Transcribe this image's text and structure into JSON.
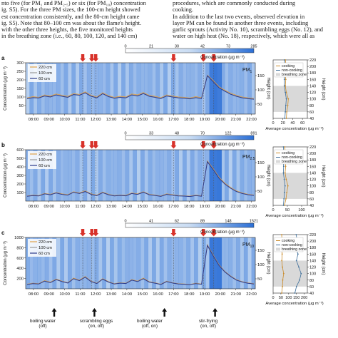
{
  "text_left": [
    "nto five (for PM₁ and PM₂.₅) or six (for PM₁₀) concentration",
    "ig. S5). For the three PM sizes, the 100-cm height showed",
    "est concentration consistently, and the 80-cm height came",
    "ig. S5). Note that 80–100 cm was about the flame's height.",
    "with the other three heights, the five monitored heights",
    "in the breathing zone (i.e., 60, 80, 100, 120, and 140 cm)"
  ],
  "text_right": [
    "procedures, which are commonly conducted during",
    "cooking.",
    "  In addition to the last two events, observed elevation in",
    "layer PM can be found in another three events, including",
    "garlic sprouts (Activity No. 10), scrambling eggs (No. 12), and",
    "water on high heat (No. 18), respectively, which were all as"
  ],
  "colors": {
    "accent_blue": "#2b6fd6",
    "line_220": "#e0a24a",
    "line_100": "#9a9a9a",
    "line_60": "#2b3a8c",
    "event_arrow": "#d8322a",
    "breathing_zone": "#d9d9d9"
  },
  "chart_data": [
    {
      "panel_letter": "a",
      "type": "line",
      "pm_label_base": "PM",
      "pm_label_sub": "1",
      "ylabel": "Concentration (μg m⁻³)",
      "y_ticks": [
        "50",
        "100",
        "150",
        "200",
        "250",
        "300"
      ],
      "ylim": [
        0,
        300
      ],
      "right_axis_label": "Height (cm)",
      "right_ticks": [
        "50",
        "100",
        "150"
      ],
      "colorbar_ticks": [
        "0",
        "21",
        "30",
        "42",
        "73",
        "285"
      ],
      "colorbar_label": "Concentration (μg m⁻³)",
      "x_ticks": [
        "08:00",
        "09:00",
        "10:00",
        "11:00",
        "12:00",
        "13:00",
        "14:00",
        "15:00",
        "16:00",
        "17:00",
        "18:00",
        "19:00",
        "20:00",
        "21:00",
        "22:00"
      ],
      "series": [
        {
          "name": "220 cm",
          "values": [
            95,
            102,
            98,
            112,
            106,
            118,
            110,
            104,
            120,
            115,
            130,
            110,
            100,
            125,
            108,
            98,
            104,
            100,
            118,
            112,
            126,
            110,
            104,
            96,
            112,
            106,
            100,
            98,
            94,
            102,
            96,
            228,
            196,
            160,
            140,
            122,
            110,
            100,
            95,
            92
          ]
        },
        {
          "name": "100 cm",
          "values": [
            92,
            98,
            96,
            108,
            102,
            114,
            106,
            100,
            116,
            112,
            126,
            106,
            97,
            121,
            104,
            95,
            100,
            97,
            114,
            108,
            122,
            106,
            100,
            93,
            108,
            102,
            97,
            95,
            91,
            98,
            93,
            226,
            192,
            156,
            136,
            118,
            106,
            97,
            92,
            89
          ]
        },
        {
          "name": "60 cm",
          "values": [
            90,
            96,
            94,
            106,
            100,
            112,
            104,
            98,
            114,
            110,
            124,
            104,
            95,
            119,
            102,
            93,
            98,
            95,
            112,
            106,
            120,
            104,
            98,
            91,
            106,
            100,
            95,
            93,
            89,
            96,
            91,
            224,
            190,
            154,
            134,
            116,
            104,
            95,
            90,
            87
          ]
        }
      ],
      "side_profile": {
        "xlabel": "Average concentration (μg m⁻³)",
        "ylabel": "Height (cm)",
        "y_ticks": [
          "40",
          "60",
          "80",
          "100",
          "120",
          "140",
          "160",
          "180",
          "200",
          "220"
        ],
        "ylim": [
          40,
          220
        ],
        "x_ticks": [
          "0",
          "20",
          "40",
          "60"
        ],
        "xlim": [
          0,
          70
        ],
        "legend": [
          "cooking",
          "non-cooking",
          "breathing zone"
        ],
        "breathing_zone": [
          60,
          140
        ],
        "heights": [
          40,
          60,
          80,
          100,
          120,
          140,
          160,
          180,
          200,
          220
        ],
        "cooking": [
          27,
          28,
          30,
          31,
          27,
          25,
          26,
          24,
          27,
          25
        ],
        "non_cooking": [
          24,
          25,
          26,
          27,
          25,
          23,
          23,
          22,
          24,
          23
        ]
      }
    },
    {
      "panel_letter": "b",
      "type": "line",
      "pm_label_base": "PM",
      "pm_label_sub": "2.5",
      "ylabel": "Concentration (μg m⁻³)",
      "y_ticks": [
        "100",
        "200",
        "300",
        "400",
        "500",
        "600"
      ],
      "ylim": [
        0,
        600
      ],
      "right_axis_label": "Height (cm)",
      "right_ticks": [
        "50",
        "100",
        "150"
      ],
      "colorbar_ticks": [
        "0",
        "33",
        "48",
        "70",
        "122",
        "891"
      ],
      "colorbar_label": "Concentration (μg m⁻³)",
      "x_ticks": [
        "08:00",
        "09:00",
        "10:00",
        "11:00",
        "12:00",
        "13:00",
        "14:00",
        "15:00",
        "16:00",
        "17:00",
        "18:00",
        "19:00",
        "20:00",
        "21:00",
        "22:00"
      ],
      "series": [
        {
          "name": "220 cm",
          "values": [
            60,
            70,
            65,
            90,
            80,
            100,
            85,
            75,
            110,
            95,
            120,
            85,
            70,
            105,
            80,
            65,
            72,
            68,
            95,
            85,
            110,
            80,
            72,
            60,
            85,
            75,
            66,
            62,
            58,
            70,
            62,
            470,
            380,
            280,
            210,
            160,
            120,
            95,
            80,
            72
          ]
        },
        {
          "name": "100 cm",
          "values": [
            58,
            66,
            62,
            86,
            76,
            96,
            80,
            72,
            105,
            90,
            115,
            80,
            66,
            100,
            76,
            62,
            68,
            64,
            90,
            80,
            105,
            76,
            68,
            57,
            80,
            72,
            63,
            60,
            55,
            66,
            59,
            465,
            372,
            272,
            204,
            154,
            115,
            90,
            76,
            68
          ]
        },
        {
          "name": "60 cm",
          "values": [
            56,
            64,
            60,
            84,
            74,
            94,
            78,
            70,
            103,
            88,
            112,
            78,
            64,
            98,
            74,
            60,
            66,
            62,
            88,
            78,
            103,
            74,
            66,
            55,
            78,
            70,
            61,
            58,
            53,
            64,
            57,
            460,
            368,
            268,
            200,
            150,
            112,
            88,
            74,
            66
          ]
        }
      ],
      "side_profile": {
        "xlabel": "Average concentration (μg m⁻³)",
        "ylabel": "Height (cm)",
        "y_ticks": [
          "40",
          "60",
          "80",
          "100",
          "120",
          "140",
          "160",
          "180",
          "200",
          "220"
        ],
        "ylim": [
          40,
          220
        ],
        "x_ticks": [
          "0",
          "50",
          "100"
        ],
        "xlim": [
          0,
          120
        ],
        "legend": [
          "cooking",
          "non-cooking",
          "breathing zone"
        ],
        "breathing_zone": [
          60,
          140
        ],
        "heights": [
          40,
          60,
          80,
          100,
          120,
          140,
          160,
          180,
          200,
          220
        ],
        "cooking": [
          40,
          45,
          48,
          52,
          46,
          42,
          44,
          40,
          43,
          41
        ],
        "non_cooking": [
          36,
          38,
          40,
          42,
          39,
          36,
          37,
          35,
          37,
          36
        ]
      }
    },
    {
      "panel_letter": "c",
      "type": "line",
      "pm_label_base": "PM",
      "pm_label_sub": "10",
      "ylabel": "Concentration (μg m⁻³)",
      "y_ticks": [
        "200",
        "400",
        "600",
        "800",
        "1000"
      ],
      "ylim": [
        0,
        1000
      ],
      "right_axis_label": "Height (cm)",
      "right_ticks": [
        "50",
        "100",
        "150"
      ],
      "colorbar_ticks": [
        "0",
        "41",
        "62",
        "89",
        "148",
        "1521"
      ],
      "colorbar_label": "Concentration (μg m⁻³)",
      "x_ticks": [
        "08:00",
        "09:00",
        "10:00",
        "11:00",
        "12:00",
        "13:00",
        "14:00",
        "15:00",
        "16:00",
        "17:00",
        "18:00",
        "19:00",
        "20:00",
        "21:00",
        "22:00"
      ],
      "series": [
        {
          "name": "220 cm",
          "values": [
            90,
            110,
            100,
            160,
            130,
            190,
            150,
            120,
            210,
            170,
            240,
            150,
            110,
            200,
            140,
            100,
            120,
            110,
            180,
            150,
            210,
            140,
            120,
            90,
            150,
            120,
            100,
            95,
            85,
            110,
            95,
            860,
            660,
            470,
            340,
            250,
            180,
            140,
            115,
            100
          ]
        },
        {
          "name": "100 cm",
          "values": [
            86,
            104,
            96,
            152,
            124,
            182,
            144,
            116,
            200,
            162,
            230,
            144,
            106,
            192,
            134,
            96,
            114,
            106,
            172,
            144,
            200,
            134,
            114,
            86,
            144,
            116,
            96,
            91,
            82,
            104,
            91,
            850,
            650,
            460,
            334,
            244,
            174,
            135,
            110,
            96
          ]
        },
        {
          "name": "60 cm",
          "values": [
            84,
            100,
            93,
            148,
            120,
            178,
            140,
            113,
            196,
            158,
            226,
            140,
            103,
            188,
            130,
            93,
            110,
            103,
            168,
            140,
            196,
            130,
            110,
            84,
            140,
            113,
            93,
            88,
            80,
            100,
            88,
            845,
            645,
            456,
            330,
            240,
            170,
            132,
            108,
            93
          ]
        }
      ],
      "side_profile": {
        "xlabel": "Average concentration (μg m⁻³)",
        "ylabel": "Height (cm)",
        "y_ticks": [
          "40",
          "60",
          "80",
          "100",
          "120",
          "140",
          "160",
          "180",
          "200",
          "220"
        ],
        "ylim": [
          40,
          220
        ],
        "x_ticks": [
          "0",
          "50",
          "100",
          "150",
          "200"
        ],
        "xlim": [
          0,
          220
        ],
        "legend": [
          "cooking",
          "non-cooking",
          "breathing zone"
        ],
        "breathing_zone": [
          60,
          140
        ],
        "heights": [
          40,
          60,
          80,
          100,
          120,
          140,
          160,
          180,
          200,
          220
        ],
        "cooking": [
          55,
          60,
          62,
          68,
          60,
          56,
          58,
          54,
          57,
          55
        ],
        "non_cooking": [
          140,
          150,
          170,
          180,
          165,
          150,
          160,
          145,
          155,
          148
        ]
      }
    }
  ],
  "events": [
    {
      "time": "11:10"
    },
    {
      "time": "11:45"
    },
    {
      "time": "12:00"
    },
    {
      "time": "17:00"
    },
    {
      "time": "18:55"
    },
    {
      "time": "19:35"
    }
  ],
  "annotations": [
    {
      "label": "boiling water",
      "sub": "(off)",
      "time": "09:20"
    },
    {
      "label": "scrambling eggs",
      "sub": "(on, off)",
      "time": "11:55"
    },
    {
      "label": "boiling water",
      "sub": "(off, on)",
      "time": "16:25"
    },
    {
      "label": "stir-frying",
      "sub": "(on, off)",
      "time": "19:40"
    }
  ]
}
